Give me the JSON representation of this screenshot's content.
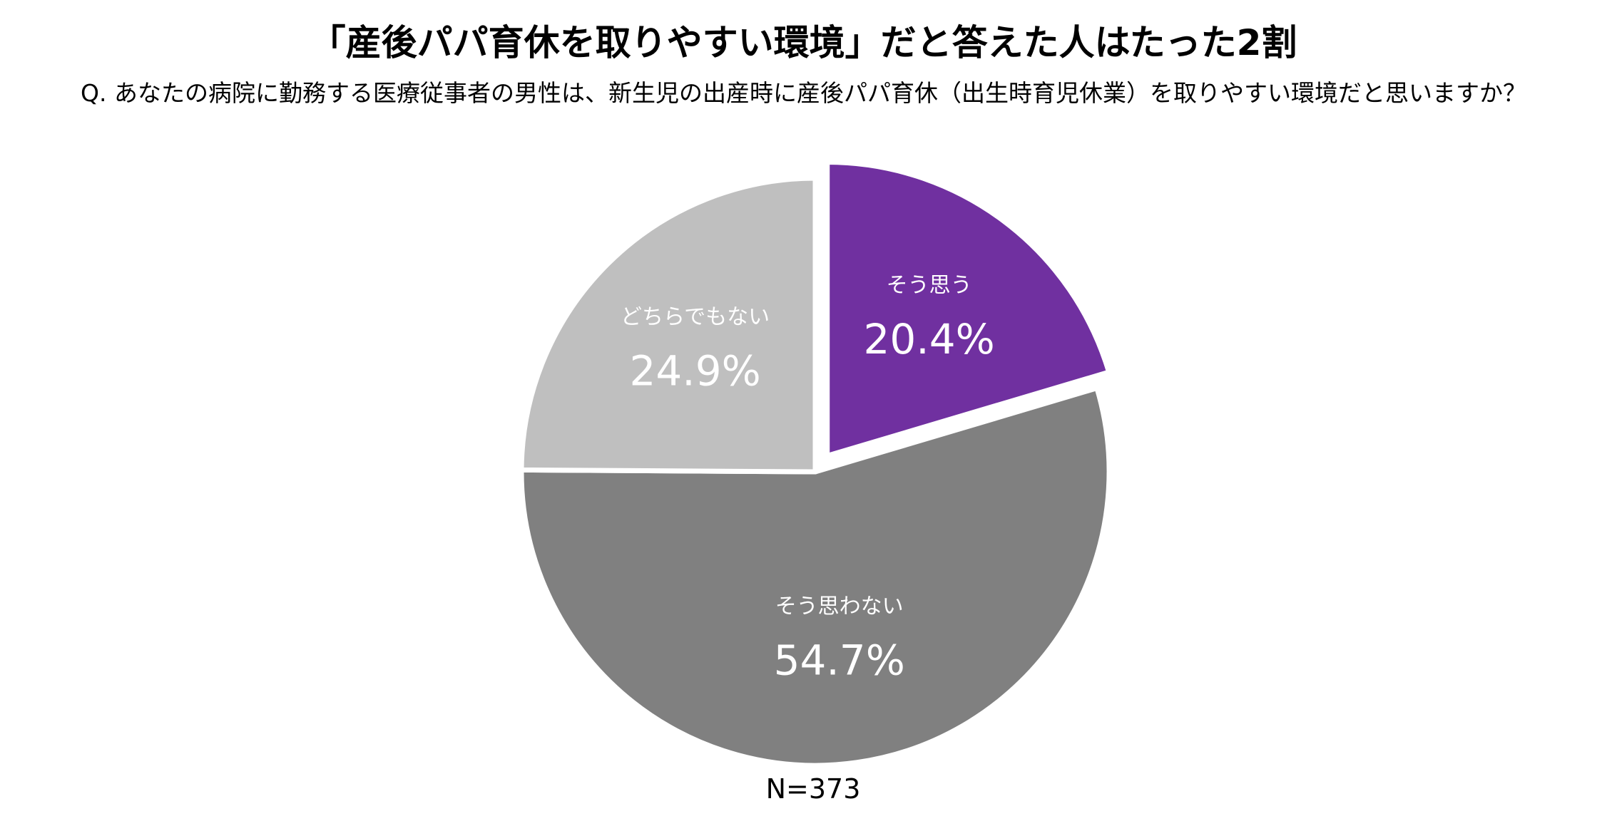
{
  "chart_data": {
    "type": "pie",
    "title": "「産後パパ育休を取りやすい環境」だと答えた人はたった2割",
    "subtitle": "Q. あなたの病院に勤務する医療従事者の男性は、新生児の出産時に産後パパ育休（出生時育児休業）を取りやすい環境だと思いますか？",
    "slices": [
      {
        "label": "そう思う",
        "value": 20.4,
        "value_text": "20.4%",
        "color": "#7030A0",
        "exploded": true
      },
      {
        "label": "そう思わない",
        "value": 54.7,
        "value_text": "54.7%",
        "color": "#808080",
        "exploded": false
      },
      {
        "label": "どちらでもない",
        "value": 24.9,
        "value_text": "24.9%",
        "color": "#BFBFBF",
        "exploded": false
      }
    ],
    "start_angle": "12 o'clock",
    "direction": "clockwise",
    "label_color": "#FFFFFF",
    "sample_size": "N=373"
  }
}
